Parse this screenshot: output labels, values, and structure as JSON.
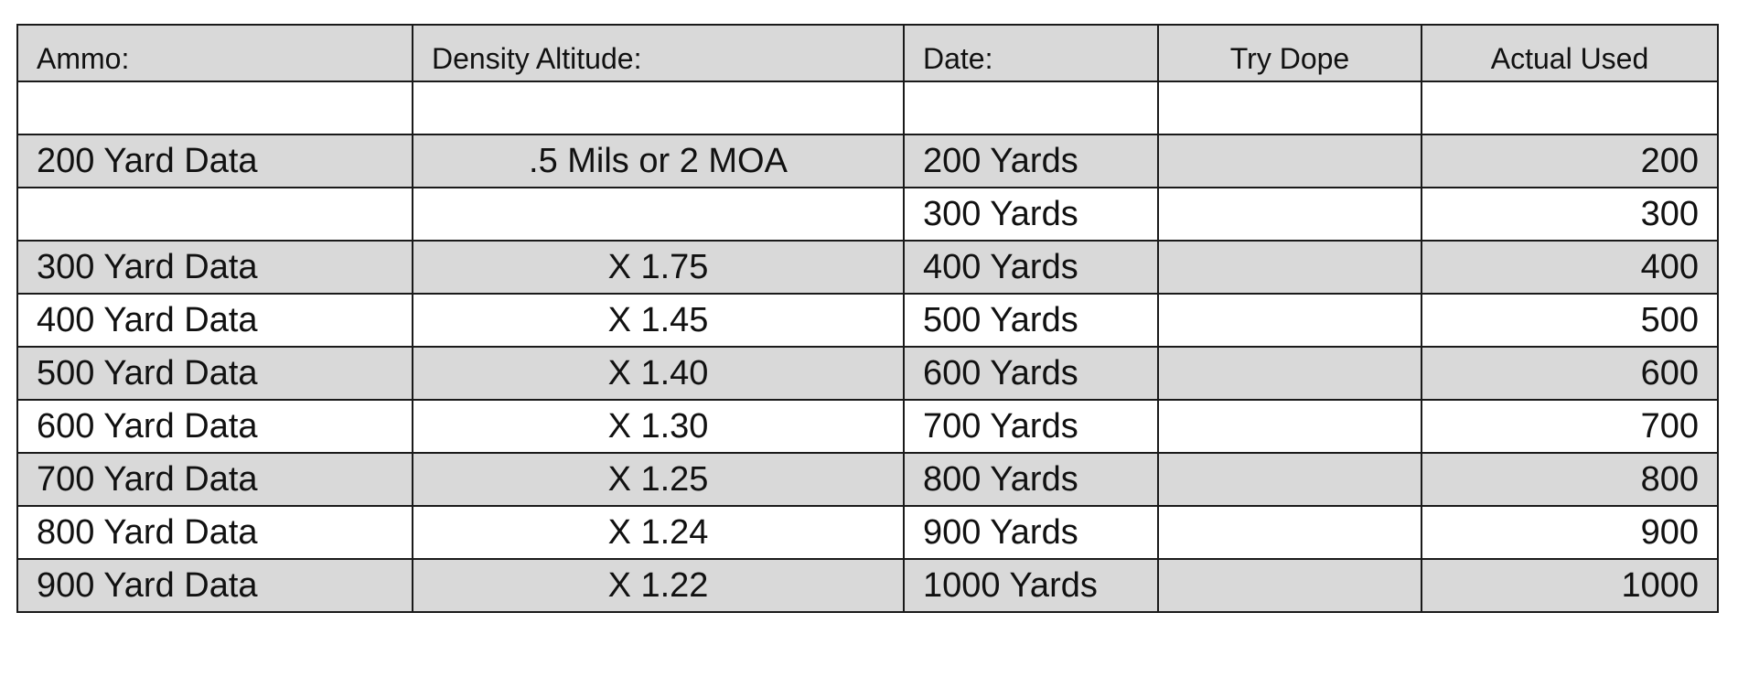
{
  "table": {
    "headers": {
      "ammo": "Ammo:",
      "density_altitude": "Density Altitude:",
      "date": "Date:",
      "try_dope": "Try Dope",
      "actual_used": "Actual Used"
    },
    "rows": [
      {
        "ammo": "",
        "da": "",
        "date": "",
        "try": "",
        "actual": ""
      },
      {
        "ammo": "200 Yard Data",
        "da": ".5 Mils or 2 MOA",
        "date": "200 Yards",
        "try": "",
        "actual": "200"
      },
      {
        "ammo": "",
        "da": "",
        "date": "300 Yards",
        "try": "",
        "actual": "300"
      },
      {
        "ammo": "300 Yard Data",
        "da": "X 1.75",
        "date": " 400 Yards",
        "try": "",
        "actual": "400"
      },
      {
        "ammo": "400 Yard Data",
        "da": "X 1.45",
        "date": " 500 Yards",
        "try": "",
        "actual": "500"
      },
      {
        "ammo": "500 Yard Data",
        "da": "X 1.40",
        "date": " 600 Yards",
        "try": "",
        "actual": "600"
      },
      {
        "ammo": "600 Yard Data",
        "da": "X 1.30",
        "date": " 700 Yards",
        "try": "",
        "actual": "700"
      },
      {
        "ammo": "700 Yard Data",
        "da": "X 1.25",
        "date": " 800 Yards",
        "try": "",
        "actual": "800"
      },
      {
        "ammo": "800 Yard Data",
        "da": "X 1.24",
        "date": " 900 Yards",
        "try": "",
        "actual": "900"
      },
      {
        "ammo": "900 Yard Data",
        "da": "X 1.22",
        "date": "1000 Yards",
        "try": "",
        "actual": "1000"
      }
    ]
  },
  "colors": {
    "shade": "#d9d9d9",
    "border": "#1a1a1a",
    "plain": "#ffffff"
  }
}
